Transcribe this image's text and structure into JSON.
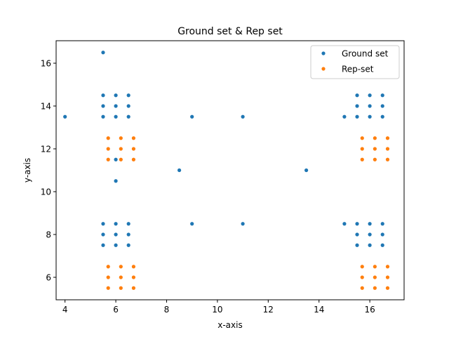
{
  "chart_data": {
    "type": "scatter",
    "title": "Ground set & Rep set",
    "xlabel": "x-axis",
    "ylabel": "y-axis",
    "xlim": [
      3.65,
      17.35
    ],
    "ylim": [
      4.95,
      17.05
    ],
    "xticks": [
      4,
      6,
      8,
      10,
      12,
      14,
      16
    ],
    "yticks": [
      6,
      8,
      10,
      12,
      14,
      16
    ],
    "grid": false,
    "legend_position": "top-right",
    "series": [
      {
        "name": "Ground set",
        "color": "#1f77b4",
        "points": [
          [
            5.5,
            16.5
          ],
          [
            4,
            13.5
          ],
          [
            5.5,
            14.5
          ],
          [
            6,
            14.5
          ],
          [
            6.5,
            14.5
          ],
          [
            5.5,
            14
          ],
          [
            6,
            14
          ],
          [
            6.5,
            14
          ],
          [
            5.5,
            13.5
          ],
          [
            6,
            13.5
          ],
          [
            6.5,
            13.5
          ],
          [
            6,
            11.5
          ],
          [
            6,
            10.5
          ],
          [
            9,
            13.5
          ],
          [
            11,
            13.5
          ],
          [
            8.5,
            11
          ],
          [
            13.5,
            11
          ],
          [
            9,
            8.5
          ],
          [
            11,
            8.5
          ],
          [
            5.5,
            8.5
          ],
          [
            6,
            8.5
          ],
          [
            6.5,
            8.5
          ],
          [
            5.5,
            8
          ],
          [
            6,
            8
          ],
          [
            6.5,
            8
          ],
          [
            5.5,
            7.5
          ],
          [
            6,
            7.5
          ],
          [
            6.5,
            7.5
          ],
          [
            15,
            13.5
          ],
          [
            15.5,
            14.5
          ],
          [
            16,
            14.5
          ],
          [
            16.5,
            14.5
          ],
          [
            15.5,
            14
          ],
          [
            16,
            14
          ],
          [
            16.5,
            14
          ],
          [
            15.5,
            13.5
          ],
          [
            16,
            13.5
          ],
          [
            16.5,
            13.5
          ],
          [
            15,
            8.5
          ],
          [
            15.5,
            8.5
          ],
          [
            16,
            8.5
          ],
          [
            16.5,
            8.5
          ],
          [
            15.5,
            8
          ],
          [
            16,
            8
          ],
          [
            16.5,
            8
          ],
          [
            15.5,
            7.5
          ],
          [
            16,
            7.5
          ],
          [
            16.5,
            7.5
          ]
        ]
      },
      {
        "name": "Rep-set",
        "color": "#ff7f0e",
        "points": [
          [
            5.7,
            12.5
          ],
          [
            6.2,
            12.5
          ],
          [
            6.7,
            12.5
          ],
          [
            5.7,
            12
          ],
          [
            6.2,
            12
          ],
          [
            6.7,
            12
          ],
          [
            5.7,
            11.5
          ],
          [
            6.2,
            11.5
          ],
          [
            6.7,
            11.5
          ],
          [
            5.7,
            6.5
          ],
          [
            6.2,
            6.5
          ],
          [
            6.7,
            6.5
          ],
          [
            5.7,
            6
          ],
          [
            6.2,
            6
          ],
          [
            6.7,
            6
          ],
          [
            5.7,
            5.5
          ],
          [
            6.2,
            5.5
          ],
          [
            6.7,
            5.5
          ],
          [
            15.7,
            12.5
          ],
          [
            16.2,
            12.5
          ],
          [
            16.7,
            12.5
          ],
          [
            15.7,
            12
          ],
          [
            16.2,
            12
          ],
          [
            16.7,
            12
          ],
          [
            15.7,
            11.5
          ],
          [
            16.2,
            11.5
          ],
          [
            16.7,
            11.5
          ],
          [
            15.7,
            6.5
          ],
          [
            16.2,
            6.5
          ],
          [
            16.7,
            6.5
          ],
          [
            15.7,
            6
          ],
          [
            16.2,
            6
          ],
          [
            16.7,
            6
          ],
          [
            15.7,
            5.5
          ],
          [
            16.2,
            5.5
          ],
          [
            16.7,
            5.5
          ]
        ]
      }
    ]
  }
}
